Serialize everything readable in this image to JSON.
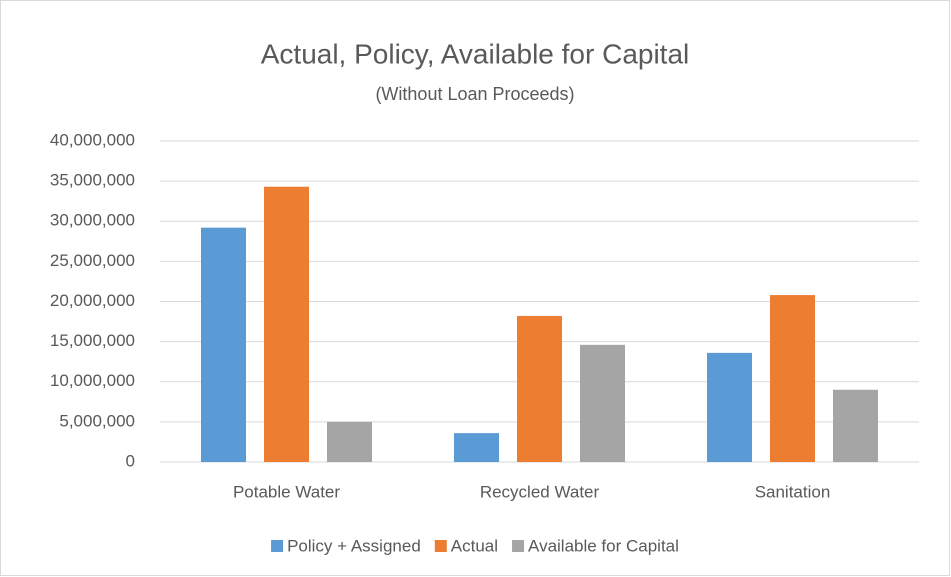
{
  "chart_data": {
    "type": "bar",
    "title": "Actual, Policy, Available for Capital",
    "subtitle": "(Without Loan Proceeds)",
    "categories": [
      "Potable Water",
      "Recycled Water",
      "Sanitation"
    ],
    "series": [
      {
        "name": "Policy + Assigned",
        "color": "#5b9bd5",
        "values": [
          29200000,
          3600000,
          13600000
        ]
      },
      {
        "name": "Actual",
        "color": "#ed7d31",
        "values": [
          34300000,
          18200000,
          20800000
        ]
      },
      {
        "name": "Available for Capital",
        "color": "#a5a5a5",
        "values": [
          5000000,
          14600000,
          9000000
        ]
      }
    ],
    "ylim": [
      0,
      40000000
    ],
    "yticks": [
      0,
      {
        "value": 5000000,
        "label": "5,000,000"
      },
      {
        "value": 10000000,
        "label": "10,000,000"
      },
      {
        "value": 15000000,
        "label": "15,000,000"
      },
      {
        "value": 20000000,
        "label": "20,000,000"
      },
      {
        "value": 25000000,
        "label": "25,000,000"
      },
      {
        "value": 30000000,
        "label": "30,000,000"
      },
      {
        "value": 35000000,
        "label": "35,000,000"
      },
      {
        "value": 40000000,
        "label": "40,000,000"
      }
    ],
    "grid": true,
    "legend": "bottom"
  }
}
